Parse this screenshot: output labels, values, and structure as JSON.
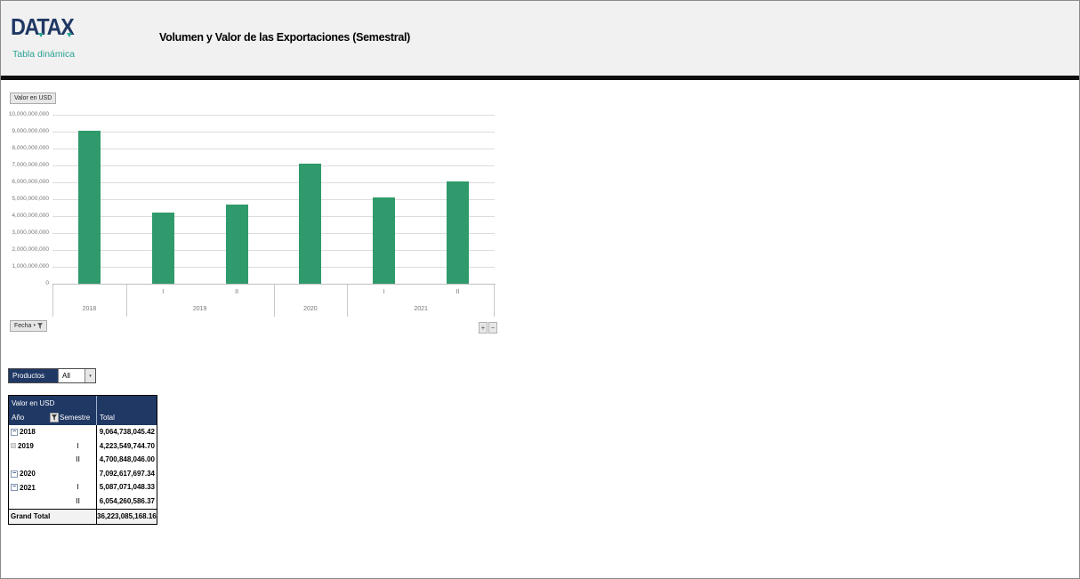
{
  "header": {
    "logo": "DATAX",
    "logo_subtitle": "Tabla dinámica",
    "title": "Volumen y Valor de las Exportaciones (Semestral)"
  },
  "colors": {
    "bar_green": "#2f9a6b",
    "brand_navy": "#203864",
    "brand_teal": "#2aa394",
    "header_band_grey": "#f1f1f1"
  },
  "icons": {
    "dropdown_arrow": "▾",
    "funnel": "filter-icon",
    "expand_toggle": "−"
  },
  "chart": {
    "value_field_button": "Valor en USD",
    "axis_field_button": "Fecha",
    "expand_button_label": "+",
    "collapse_button_label": "−"
  },
  "chart_data": {
    "type": "bar",
    "title": "",
    "xlabel": "Fecha",
    "ylabel": "Valor en USD",
    "ylim": [
      0,
      10000000000
    ],
    "ytick_step": 1000000000,
    "grid": true,
    "legend": false,
    "categories": [
      "2018",
      "2019-I",
      "2019-II",
      "2020",
      "2021-I",
      "2021-II"
    ],
    "values": [
      9064738045.42,
      4223549744.7,
      4700848046.0,
      7092617697.34,
      5087071048.33,
      6054260586.37
    ],
    "semester_labels": [
      "",
      "I",
      "II",
      "",
      "I",
      "II"
    ],
    "groups": [
      {
        "label": "2018",
        "span": 1
      },
      {
        "label": "2019",
        "span": 2
      },
      {
        "label": "2020",
        "span": 1
      },
      {
        "label": "2021",
        "span": 2
      }
    ]
  },
  "productos_filter": {
    "label": "Productos",
    "value": "All"
  },
  "table": {
    "title": "Valor en USD",
    "columns": {
      "year": "Año",
      "semester": "Semestre",
      "total": "Total"
    },
    "rows": [
      {
        "icon": "toggle",
        "year": "2018",
        "semester": "",
        "total": "9,064,738,045.42"
      },
      {
        "icon": "grey",
        "year": "2019",
        "semester": "I",
        "total": "4,223,549,744.70"
      },
      {
        "icon": null,
        "year": "",
        "semester": "II",
        "total": "4,700,848,046.00"
      },
      {
        "icon": "toggle",
        "year": "2020",
        "semester": "",
        "total": "7,092,617,697.34"
      },
      {
        "icon": "toggle",
        "year": "2021",
        "semester": "I",
        "total": "5,087,071,048.33"
      },
      {
        "icon": null,
        "year": "",
        "semester": "II",
        "total": "6,054,260,586.37"
      }
    ],
    "grand_total_label": "Grand Total",
    "grand_total_value": "36,223,085,168.16"
  }
}
